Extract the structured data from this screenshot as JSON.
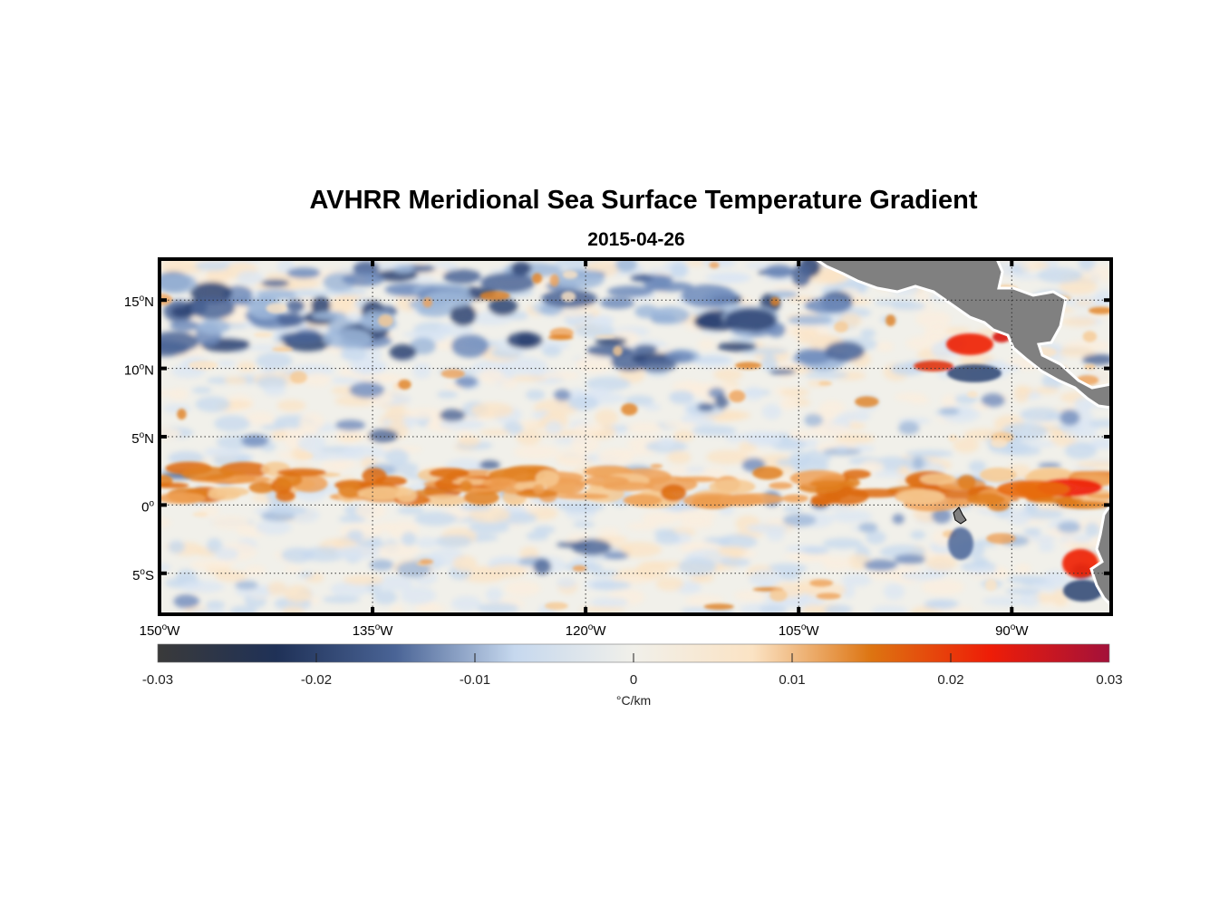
{
  "title": "AVHRR Meridional Sea Surface Temperature Gradient",
  "subtitle": "2015-04-26",
  "map": {
    "lon_range": [
      -150,
      -83
    ],
    "lat_range": [
      -8,
      18
    ],
    "projection": "equirectangular",
    "grid": "dotted",
    "land_color": "#808080",
    "lat_ticks": [
      {
        "value": 15,
        "deg": "15",
        "hem": "N"
      },
      {
        "value": 10,
        "deg": "10",
        "hem": "N"
      },
      {
        "value": 5,
        "deg": "5",
        "hem": "N"
      },
      {
        "value": 0,
        "deg": "0",
        "hem": ""
      },
      {
        "value": -5,
        "deg": "5",
        "hem": "S"
      }
    ],
    "lon_ticks": [
      {
        "value": -150,
        "deg": "150",
        "hem": "W"
      },
      {
        "value": -135,
        "deg": "135",
        "hem": "W"
      },
      {
        "value": -120,
        "deg": "120",
        "hem": "W"
      },
      {
        "value": -105,
        "deg": "105",
        "hem": "W"
      },
      {
        "value": -90,
        "deg": "90",
        "hem": "W"
      }
    ]
  },
  "colorbar": {
    "ticks": [
      "-0.03",
      "-0.02",
      "-0.01",
      "0",
      "0.01",
      "0.02",
      "0.03"
    ],
    "unit": "°C/km",
    "colors": [
      "#3a3a3a",
      "#1f3157",
      "#4a6496",
      "#c6d8ee",
      "#f1f0ea",
      "#fbe3c4",
      "#dd7411",
      "#ee1d07",
      "#a3113a"
    ]
  }
}
